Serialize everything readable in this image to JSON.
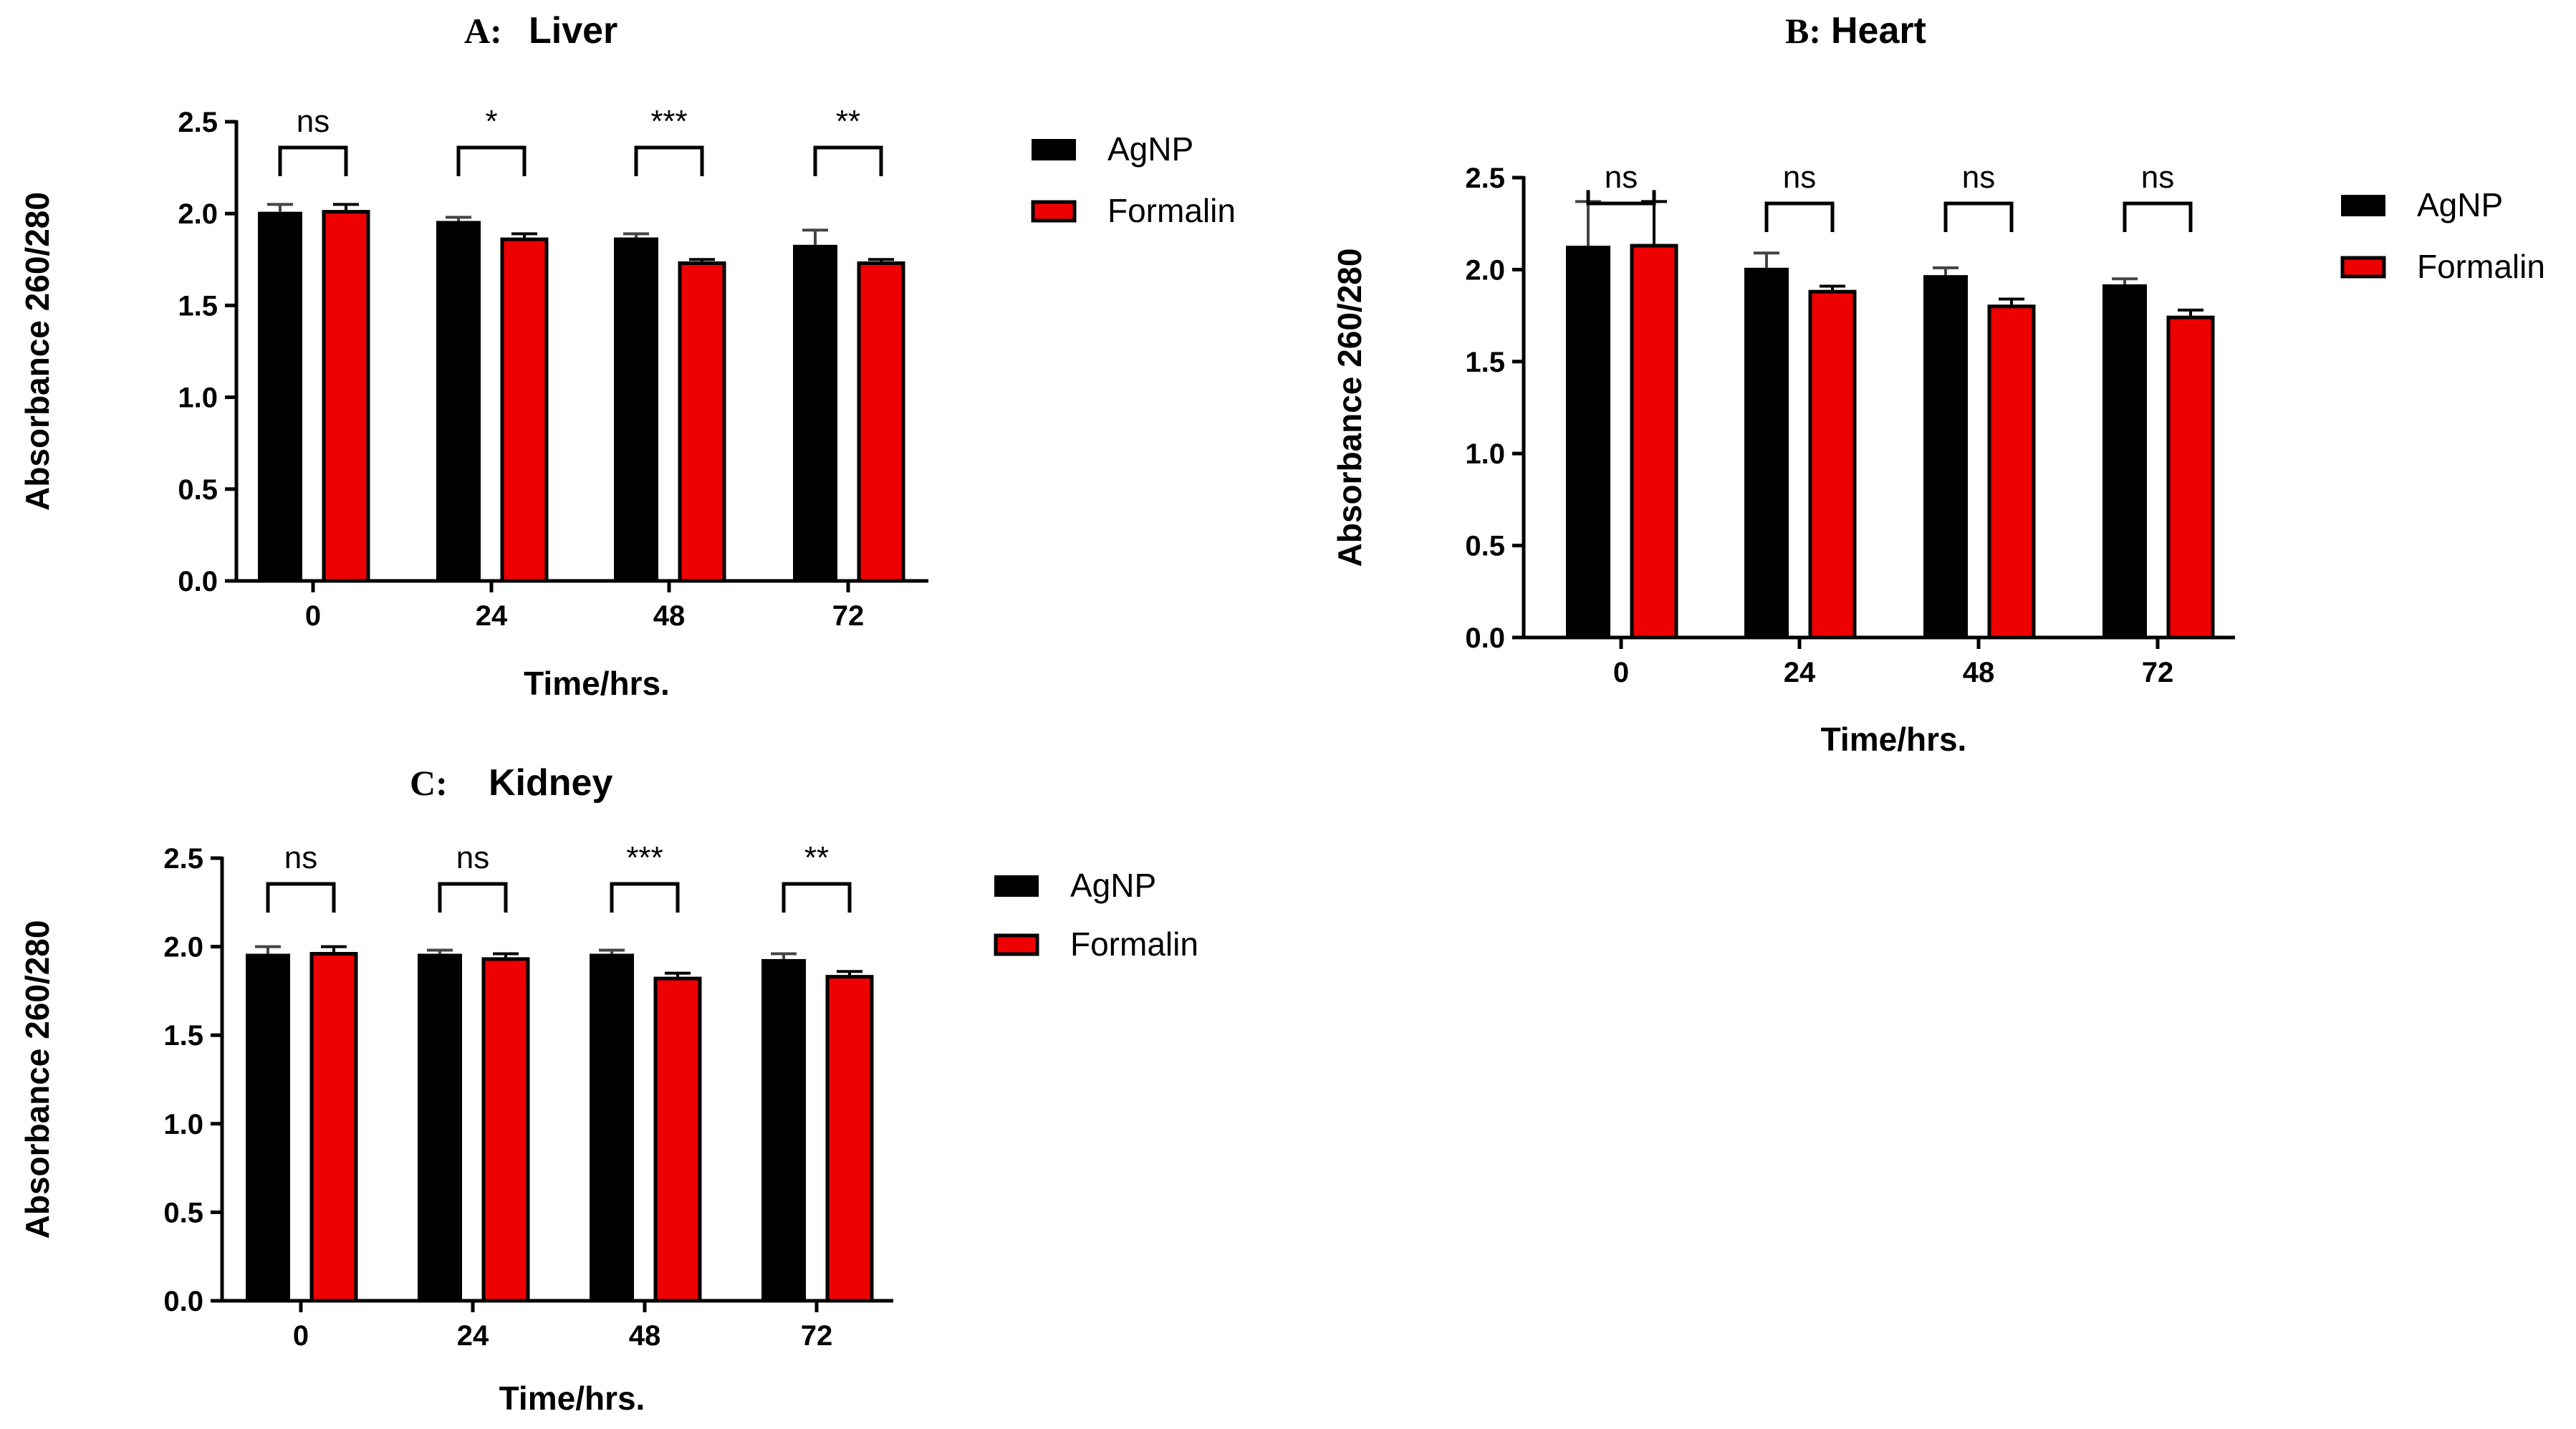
{
  "colors": {
    "agnp": "#000000",
    "formalin": "#ee0000",
    "error_agnp": "#444444",
    "error_formalin": "#000000"
  },
  "chart_data": [
    {
      "type": "bar",
      "panel": "A:",
      "title": "Liver",
      "categories": [
        "0",
        "24",
        "48",
        "72"
      ],
      "series": [
        {
          "name": "AgNP",
          "values": [
            2.01,
            1.96,
            1.87,
            1.83
          ],
          "errors": [
            0.04,
            0.02,
            0.02,
            0.08
          ]
        },
        {
          "name": "Formalin",
          "values": [
            2.01,
            1.86,
            1.73,
            1.73
          ],
          "errors": [
            0.04,
            0.03,
            0.02,
            0.02
          ]
        }
      ],
      "significance": [
        "ns",
        "*",
        "***",
        "**"
      ],
      "xlabel": "Time/hrs.",
      "ylabel": "Absorbance 260/280",
      "ylim": [
        0,
        2.5
      ],
      "yticks": [
        "0.0",
        "0.5",
        "1.0",
        "1.5",
        "2.0",
        "2.5"
      ],
      "legend": "right"
    },
    {
      "type": "bar",
      "panel": "B:",
      "title": "Heart",
      "categories": [
        "0",
        "24",
        "48",
        "72"
      ],
      "series": [
        {
          "name": "AgNP",
          "values": [
            2.13,
            2.01,
            1.97,
            1.92
          ],
          "errors": [
            0.24,
            0.08,
            0.04,
            0.03
          ]
        },
        {
          "name": "Formalin",
          "values": [
            2.13,
            1.88,
            1.8,
            1.74
          ],
          "errors": [
            0.24,
            0.03,
            0.04,
            0.04
          ]
        }
      ],
      "significance": [
        "ns",
        "ns",
        "ns",
        "ns"
      ],
      "xlabel": "Time/hrs.",
      "ylabel": "Absorbance 260/280",
      "ylim": [
        0,
        2.5
      ],
      "yticks": [
        "0.0",
        "0.5",
        "1.0",
        "1.5",
        "2.0",
        "2.5"
      ],
      "legend": "right"
    },
    {
      "type": "bar",
      "panel": "C:",
      "title": "Kidney",
      "categories": [
        "0",
        "24",
        "48",
        "72"
      ],
      "series": [
        {
          "name": "AgNP",
          "values": [
            1.96,
            1.96,
            1.96,
            1.93
          ],
          "errors": [
            0.04,
            0.02,
            0.02,
            0.03
          ]
        },
        {
          "name": "Formalin",
          "values": [
            1.96,
            1.93,
            1.82,
            1.83
          ],
          "errors": [
            0.04,
            0.03,
            0.03,
            0.03
          ]
        }
      ],
      "significance": [
        "ns",
        "ns",
        "***",
        "**"
      ],
      "xlabel": "Time/hrs.",
      "ylabel": "Absorbance 260/280",
      "ylim": [
        0,
        2.5
      ],
      "yticks": [
        "0.0",
        "0.5",
        "1.0",
        "1.5",
        "2.0",
        "2.5"
      ],
      "legend": "right"
    }
  ]
}
